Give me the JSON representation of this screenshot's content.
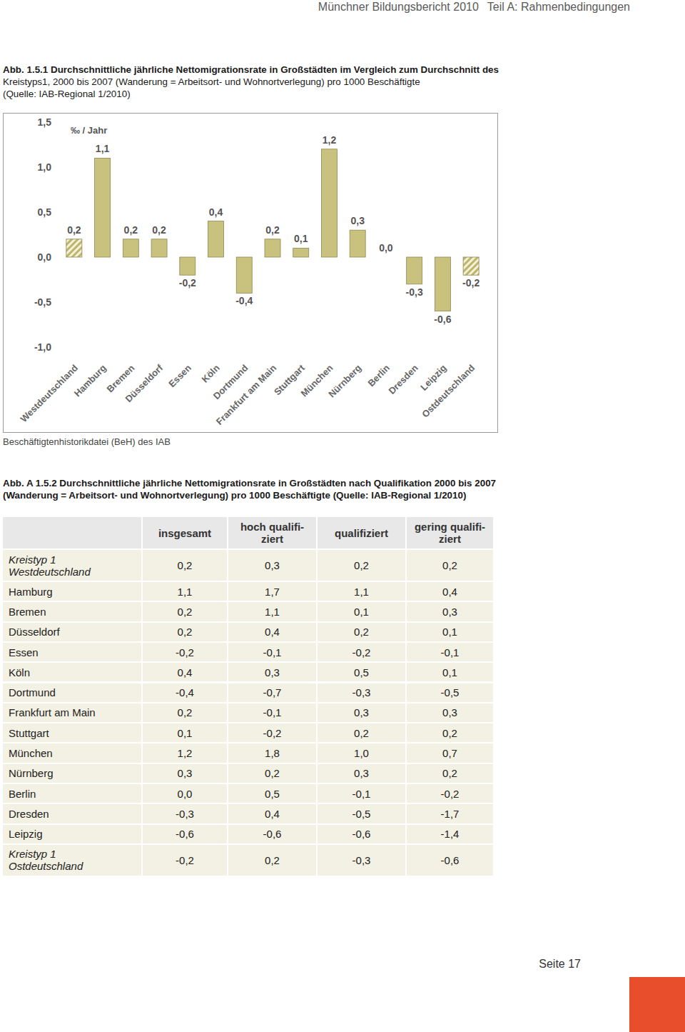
{
  "header": {
    "title": "Münchner Bildungsbericht 2010",
    "section": "Teil A: Rahmenbedingungen"
  },
  "figure1": {
    "caption": [
      "Abb. 1.5.1 Durchschnittliche jährliche Nettomigrationsrate in Großstädten im Vergleich zum Durchschnitt des",
      "Kreistyps1, 2000 bis 2007 (Wanderung = Arbeitsort- und Wohnortverlegung) pro 1000 Beschäftigte",
      "(Quelle: IAB-Regional 1/2010)"
    ],
    "source": "Beschäftigtenhistorikdatei (BeH) des IAB"
  },
  "chart_data": {
    "type": "bar",
    "y_label": "‰ / Jahr",
    "categories": [
      "Westdeutschland",
      "Hamburg",
      "Bremen",
      "Düsseldorf",
      "Essen",
      "Köln",
      "Dortmund",
      "Frankfurt am Main",
      "Stuttgart",
      "München",
      "Nürnberg",
      "Berlin",
      "Dresden",
      "Leipzig",
      "Ostdeutschland"
    ],
    "values": [
      0.2,
      1.1,
      0.2,
      0.2,
      -0.2,
      0.4,
      -0.4,
      0.2,
      0.1,
      1.2,
      0.3,
      0.0,
      -0.3,
      -0.6,
      -0.2
    ],
    "value_labels": [
      "0,2",
      "1,1",
      "0,2",
      "0,2",
      "-0,2",
      "0,4",
      "-0,4",
      "0,2",
      "0,1",
      "1,2",
      "0,3",
      "0,0",
      "-0,3",
      "-0,6",
      "-0,2"
    ],
    "data_labels": true,
    "color": "#c9c27e",
    "colors": [
      "#bdb56c",
      "#c9c27e",
      "#c9c27e",
      "#c9c27e",
      "#c9c27e",
      "#c9c27e",
      "#c9c27e",
      "#c9c27e",
      "#c9c27e",
      "#c9c27e",
      "#c9c27e",
      "#c9c27e",
      "#c9c27e",
      "#c9c27e",
      "#bdb56c"
    ],
    "ylim": [
      -1.0,
      1.5
    ],
    "yticks": [
      {
        "value": 1.5,
        "label": "1,5"
      },
      {
        "value": 1.0,
        "label": "1,0"
      },
      {
        "value": 0.5,
        "label": "0,5"
      },
      {
        "value": 0.0,
        "label": "0,0"
      },
      {
        "value": -0.5,
        "label": "-0,5"
      },
      {
        "value": -1.0,
        "label": "-1,0"
      }
    ],
    "grid": false
  },
  "figure2": {
    "caption": [
      "Abb. A 1.5.2 Durchschnittliche jährliche Nettomigrationsrate in Großstädten nach Qualifikation 2000 bis 2007",
      "(Wanderung = Arbeitsort- und Wohnortverlegung) pro 1000 Beschäftigte (Quelle: IAB-Regional 1/2010)"
    ]
  },
  "table": {
    "columns": [
      [
        "insgesamt"
      ],
      [
        "hoch qualifi-",
        "ziert"
      ],
      [
        "qualifiziert"
      ],
      [
        "gering qualifi-",
        "ziert"
      ]
    ],
    "rows": [
      {
        "label": [
          "Kreistyp 1",
          "Westdeutschland"
        ],
        "cells": [
          "0,2",
          "0,3",
          "0,2",
          "0,2"
        ]
      },
      {
        "label": [
          "Hamburg"
        ],
        "cells": [
          "1,1",
          "1,7",
          "1,1",
          "0,4"
        ]
      },
      {
        "label": [
          "Bremen"
        ],
        "cells": [
          "0,2",
          "1,1",
          "0,1",
          "0,3"
        ]
      },
      {
        "label": [
          "Düsseldorf"
        ],
        "cells": [
          "0,2",
          "0,4",
          "0,2",
          "0,1"
        ]
      },
      {
        "label": [
          "Essen"
        ],
        "cells": [
          "-0,2",
          "-0,1",
          "-0,2",
          "-0,1"
        ]
      },
      {
        "label": [
          "Köln"
        ],
        "cells": [
          "0,4",
          "0,3",
          "0,5",
          "0,1"
        ]
      },
      {
        "label": [
          "Dortmund"
        ],
        "cells": [
          "-0,4",
          "-0,7",
          "-0,3",
          "-0,5"
        ]
      },
      {
        "label": [
          "Frankfurt am Main"
        ],
        "cells": [
          "0,2",
          "-0,1",
          "0,3",
          "0,3"
        ]
      },
      {
        "label": [
          "Stuttgart"
        ],
        "cells": [
          "0,1",
          "-0,2",
          "0,2",
          "0,2"
        ]
      },
      {
        "label": [
          "München"
        ],
        "cells": [
          "1,2",
          "1,8",
          "1,0",
          "0,7"
        ]
      },
      {
        "label": [
          "Nürnberg"
        ],
        "cells": [
          "0,3",
          "0,2",
          "0,3",
          "0,2"
        ]
      },
      {
        "label": [
          "Berlin"
        ],
        "cells": [
          "0,0",
          "0,5",
          "-0,1",
          "-0,2"
        ]
      },
      {
        "label": [
          "Dresden"
        ],
        "cells": [
          "-0,3",
          "0,4",
          "-0,5",
          "-1,7"
        ]
      },
      {
        "label": [
          "Leipzig"
        ],
        "cells": [
          "-0,6",
          "-0,6",
          "-0,6",
          "-1,4"
        ]
      },
      {
        "label": [
          "Kreistyp 1",
          "Ostdeutschland"
        ],
        "cells": [
          "-0,2",
          "0,2",
          "-0,3",
          "-0,6"
        ]
      }
    ]
  },
  "footer": {
    "page": "Seite 17"
  }
}
